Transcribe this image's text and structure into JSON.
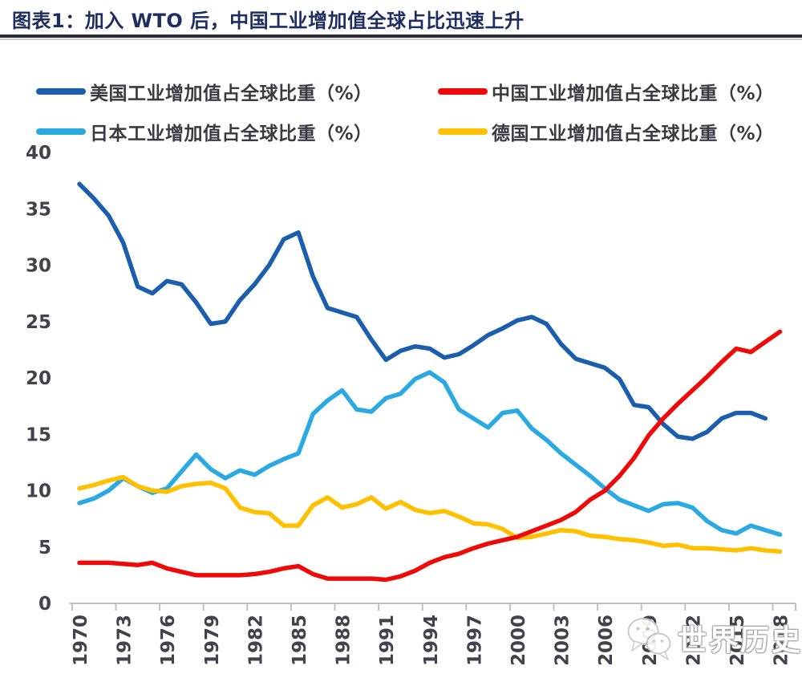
{
  "header": {
    "title": "图表1：加入 WTO 后，中国工业增加值全球占比迅速上升"
  },
  "watermark": {
    "icon": "wechat-icon",
    "text": "世界历史网"
  },
  "chart_data": {
    "type": "line",
    "title": "加入 WTO 后，中国工业增加值全球占比迅速上升",
    "xlabel": "",
    "ylabel": "",
    "ylim": [
      0,
      40
    ],
    "grid": false,
    "legend_position": "top",
    "axis_color": "#bfbfbf",
    "tick_label_color": "#41424c",
    "x": [
      1970,
      1971,
      1972,
      1973,
      1974,
      1975,
      1976,
      1977,
      1978,
      1979,
      1980,
      1981,
      1982,
      1983,
      1984,
      1985,
      1986,
      1987,
      1988,
      1989,
      1990,
      1991,
      1992,
      1993,
      1994,
      1995,
      1996,
      1997,
      1998,
      1999,
      2000,
      2001,
      2002,
      2003,
      2004,
      2005,
      2006,
      2007,
      2008,
      2009,
      2010,
      2011,
      2012,
      2013,
      2014,
      2015,
      2016,
      2017,
      2018
    ],
    "xticks": [
      1970,
      1973,
      1976,
      1979,
      1982,
      1985,
      1988,
      1991,
      1994,
      1997,
      2000,
      2003,
      2006,
      2009,
      2012,
      2015,
      2018
    ],
    "yticks": [
      0,
      5,
      10,
      15,
      20,
      25,
      30,
      35,
      40
    ],
    "series": [
      {
        "key": "us",
        "name": "美国工业增加值占全球比重（%）",
        "color": "#1b5ead",
        "values": [
          37.2,
          35.9,
          34.4,
          32.0,
          28.1,
          27.5,
          28.6,
          28.3,
          26.7,
          24.8,
          25.0,
          26.9,
          28.3,
          30.0,
          32.3,
          32.9,
          29.0,
          26.2,
          25.8,
          25.4,
          23.4,
          21.6,
          22.4,
          22.8,
          22.6,
          21.8,
          22.1,
          22.9,
          23.8,
          24.4,
          25.1,
          25.4,
          24.8,
          23.0,
          21.7,
          21.3,
          20.9,
          19.9,
          17.6,
          17.4,
          15.9,
          14.8,
          14.6,
          15.2,
          16.4,
          16.9,
          16.9,
          16.4,
          null
        ]
      },
      {
        "key": "cn",
        "name": "中国工业增加值占全球比重（%）",
        "color": "#ef0a0a",
        "values": [
          3.6,
          3.6,
          3.6,
          3.5,
          3.4,
          3.6,
          3.1,
          2.8,
          2.5,
          2.5,
          2.5,
          2.5,
          2.6,
          2.8,
          3.1,
          3.3,
          2.6,
          2.2,
          2.2,
          2.2,
          2.2,
          2.1,
          2.4,
          2.9,
          3.6,
          4.1,
          4.4,
          4.9,
          5.3,
          5.6,
          5.9,
          6.4,
          6.9,
          7.4,
          8.1,
          9.2,
          10.0,
          11.3,
          12.9,
          14.9,
          16.4,
          17.7,
          18.9,
          20.1,
          21.4,
          22.6,
          22.3,
          23.2,
          24.1
        ]
      },
      {
        "key": "jp",
        "name": "日本工业增加值占全球比重（%）",
        "color": "#2ba9e3",
        "values": [
          8.9,
          9.3,
          10.0,
          11.1,
          10.4,
          9.8,
          10.2,
          11.7,
          13.2,
          11.9,
          11.1,
          11.8,
          11.4,
          12.2,
          12.8,
          13.3,
          16.8,
          18.0,
          18.9,
          17.2,
          17.0,
          18.2,
          18.6,
          19.9,
          20.5,
          19.6,
          17.2,
          16.4,
          15.6,
          16.9,
          17.1,
          15.5,
          14.5,
          13.3,
          12.3,
          11.3,
          10.2,
          9.2,
          8.7,
          8.2,
          8.8,
          8.9,
          8.5,
          7.3,
          6.5,
          6.2,
          6.9,
          6.5,
          6.1
        ]
      },
      {
        "key": "de",
        "name": "德国工业增加值占全球比重（%）",
        "color": "#ffc000",
        "values": [
          10.2,
          10.5,
          10.9,
          11.2,
          10.4,
          10.0,
          9.9,
          10.4,
          10.6,
          10.7,
          10.2,
          8.5,
          8.1,
          8.0,
          6.9,
          6.9,
          8.7,
          9.4,
          8.5,
          8.8,
          9.4,
          8.4,
          9.0,
          8.3,
          8.0,
          8.2,
          7.7,
          7.1,
          7.0,
          6.6,
          5.8,
          5.9,
          6.2,
          6.5,
          6.4,
          6.0,
          5.9,
          5.7,
          5.6,
          5.4,
          5.1,
          5.2,
          4.9,
          4.9,
          4.8,
          4.7,
          4.9,
          4.7,
          4.6
        ]
      }
    ]
  }
}
